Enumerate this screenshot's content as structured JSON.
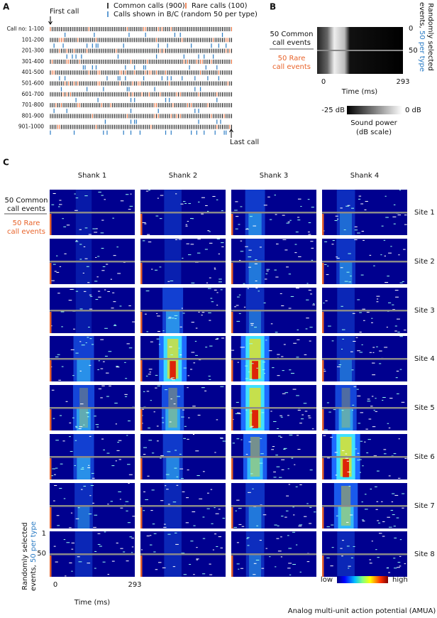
{
  "panel_a": {
    "label": "A",
    "first_call": "First call",
    "last_call": "Last call",
    "legend": [
      "Common calls (900)",
      "Rare calls (100)",
      "Calls shown in B/C (random 50 per type)"
    ],
    "rows": [
      "Call no: 1-100",
      "101-200",
      "201-300",
      "301-400",
      "401-500",
      "501-600",
      "601-700",
      "701-800",
      "801-900",
      "901-1000"
    ]
  },
  "panel_b": {
    "label": "B",
    "common": [
      "50 Common",
      "call events"
    ],
    "rare": [
      "50 Rare",
      "call events"
    ],
    "y_ticks": [
      "0",
      "50"
    ],
    "y_label": [
      "Randomly selected",
      "events, ",
      "50 per type"
    ],
    "x_ticks": [
      "0",
      "293"
    ],
    "x_label": "Time (ms)",
    "colorbar": {
      "min": "-25 dB",
      "max": "0 dB",
      "title": [
        "Sound power",
        "(dB scale)"
      ]
    }
  },
  "panel_c": {
    "label": "C",
    "shanks": [
      "Shank 1",
      "Shank 2",
      "Shank 3",
      "Shank 4"
    ],
    "sites": [
      "Site 1",
      "Site 2",
      "Site 3",
      "Site 4",
      "Site 5",
      "Site 6",
      "Site 7",
      "Site 8"
    ],
    "common": [
      "50 Common",
      "call events"
    ],
    "rare": [
      "50 Rare",
      "call events"
    ],
    "y_ticks": [
      "1",
      "50"
    ],
    "y_label": [
      "Randomly selected",
      "events, ",
      "50 per type"
    ],
    "x_ticks": [
      "0",
      "293"
    ],
    "x_label": "Time (ms)",
    "colorbar": {
      "min": "low",
      "max": "high",
      "title": "Analog multi-unit action potential (AMUA)"
    }
  }
}
